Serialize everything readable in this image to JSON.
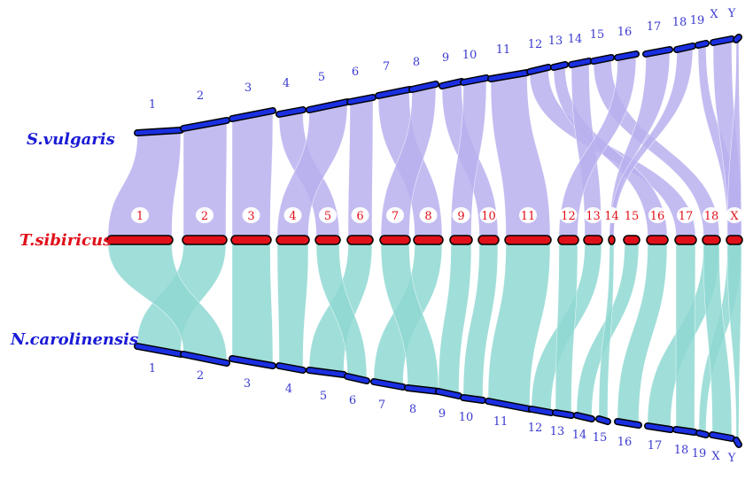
{
  "species": {
    "top": {
      "name": "S.vulgaris",
      "color": "#1a1ad6"
    },
    "middle": {
      "name": "T.sibiricus",
      "color": "#e0101a"
    },
    "bottom": {
      "name": "N.carolinensis",
      "color": "#1a1ad6"
    }
  },
  "colors": {
    "top_ribbon": "#b9b0ee",
    "bottom_ribbon": "#8fd8d2",
    "top_chrom": "#1a2fe0",
    "middle_chrom": "#e0101a",
    "bottom_chrom": "#1a2fe0",
    "top_labels": "#3a3ad0",
    "middle_labels": "#e0101a",
    "bottom_labels": "#3a3ad0"
  },
  "chromosomes": {
    "top": [
      "1",
      "2",
      "3",
      "4",
      "5",
      "6",
      "7",
      "8",
      "9",
      "10",
      "11",
      "12",
      "13",
      "14",
      "15",
      "16",
      "17",
      "18",
      "19",
      "X",
      "Y"
    ],
    "middle": [
      "1",
      "2",
      "3",
      "4",
      "5",
      "6",
      "7",
      "8",
      "9",
      "10",
      "11",
      "12",
      "13",
      "14",
      "15",
      "16",
      "17",
      "18",
      "X"
    ],
    "bottom": [
      "1",
      "2",
      "3",
      "4",
      "5",
      "6",
      "7",
      "8",
      "9",
      "10",
      "11",
      "12",
      "13",
      "14",
      "15",
      "16",
      "17",
      "18",
      "19",
      "X",
      "Y"
    ]
  }
}
